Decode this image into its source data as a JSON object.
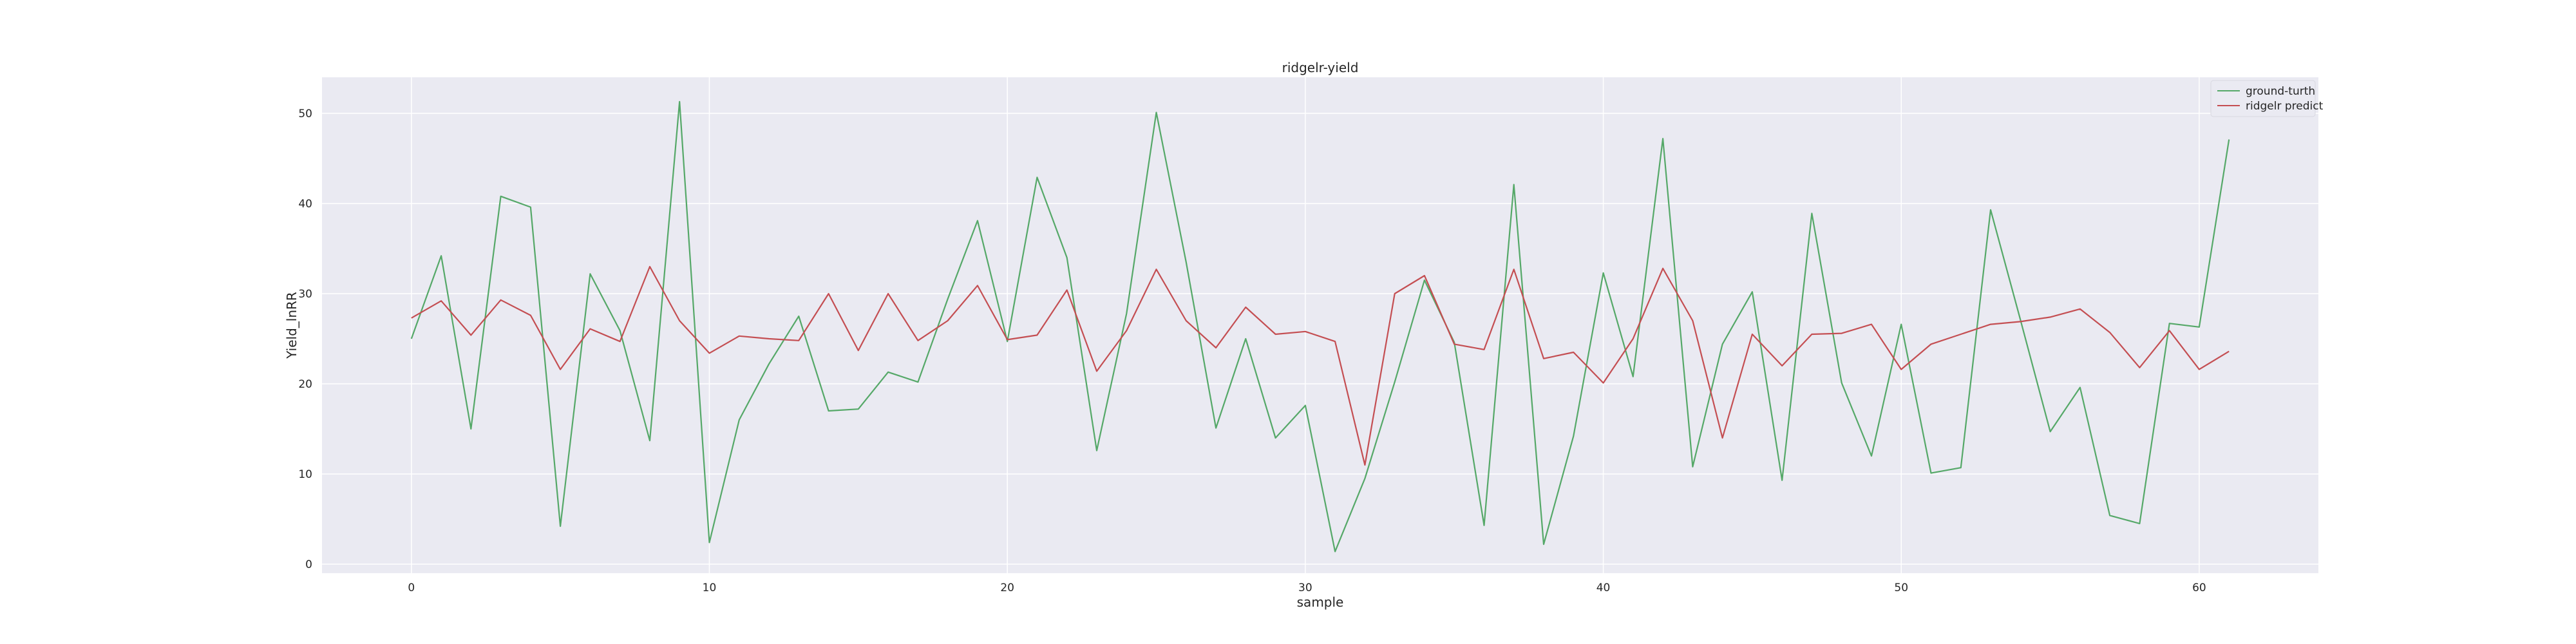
{
  "chart_data": {
    "type": "line",
    "title": "ridgelr-yield",
    "xlabel": "sample",
    "ylabel": "Yield_lnRR",
    "xlim": [
      -3,
      64
    ],
    "ylim": [
      -1,
      54
    ],
    "xticks": [
      0,
      10,
      20,
      30,
      40,
      50,
      60
    ],
    "yticks": [
      0,
      10,
      20,
      30,
      40,
      50
    ],
    "grid": true,
    "legend_position": "top-right",
    "x": [
      0,
      1,
      2,
      3,
      4,
      5,
      6,
      7,
      8,
      9,
      10,
      11,
      12,
      13,
      14,
      15,
      16,
      17,
      18,
      19,
      20,
      21,
      22,
      23,
      24,
      25,
      26,
      27,
      28,
      29,
      30,
      31,
      32,
      33,
      34,
      35,
      36,
      37,
      38,
      39,
      40,
      41,
      42,
      43,
      44,
      45,
      46,
      47,
      48,
      49,
      50,
      51,
      52,
      53,
      54,
      55,
      56,
      57,
      58,
      59,
      60,
      61
    ],
    "series": [
      {
        "name": "ground-turth",
        "color": "#55a868",
        "values": [
          25,
          34.2,
          15,
          40.8,
          39.6,
          4.2,
          32.2,
          25.9,
          13.7,
          51.3,
          2.4,
          16,
          22.2,
          27.5,
          17,
          17.2,
          21.3,
          20.2,
          29.4,
          38.1,
          24.7,
          42.9,
          34,
          12.6,
          27.8,
          50.1,
          33.5,
          15.1,
          25,
          14,
          17.6,
          1.4,
          9.5,
          20.2,
          31.5,
          24.6,
          4.3,
          42.1,
          2.2,
          14.2,
          32.3,
          20.8,
          47.2,
          10.8,
          24.4,
          30.2,
          9.3,
          38.9,
          20.1,
          12,
          26.6,
          10.1,
          10.7,
          39.3,
          27.1,
          14.7,
          19.6,
          5.4,
          4.5,
          26.7,
          26.3,
          47.1
        ]
      },
      {
        "name": "ridgelr predict",
        "color": "#c44e52",
        "values": [
          27.3,
          29.2,
          25.4,
          29.3,
          27.6,
          21.6,
          26.1,
          24.7,
          33,
          27,
          23.4,
          25.3,
          25,
          24.8,
          30,
          23.7,
          30,
          24.8,
          27,
          30.9,
          24.9,
          25.4,
          30.4,
          21.4,
          25.9,
          32.7,
          27,
          24,
          28.5,
          25.5,
          25.8,
          24.7,
          11,
          30,
          32,
          24.4,
          23.8,
          32.7,
          22.8,
          23.5,
          20.1,
          25,
          32.8,
          27,
          14,
          25.5,
          22,
          25.5,
          25.6,
          26.6,
          21.6,
          24.4,
          25.5,
          26.6,
          26.9,
          27.4,
          28.3,
          25.7,
          21.8,
          25.9,
          21.6,
          23.6
        ]
      }
    ],
    "background": "#eaeaf2",
    "grid_color": "#ffffff"
  }
}
